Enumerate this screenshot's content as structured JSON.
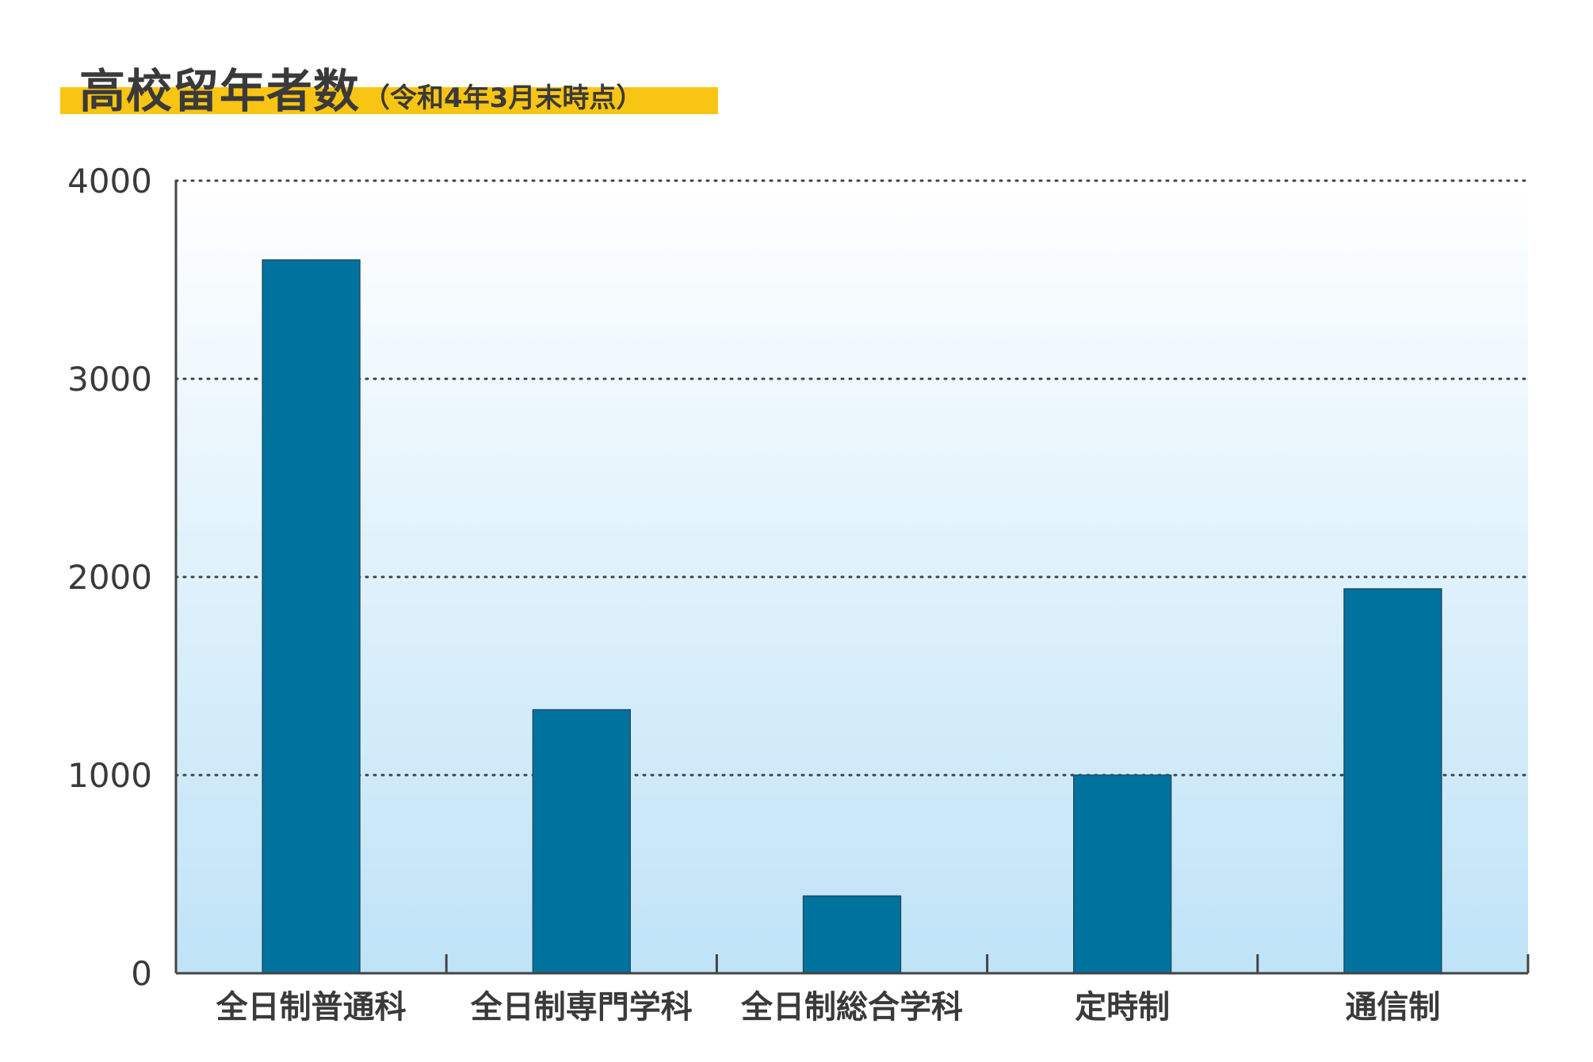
{
  "title": {
    "main": "高校留年者数",
    "sub": "（令和4年3月末時点）"
  },
  "colors": {
    "bar": "#00729e",
    "accent": "#f9c514",
    "bg_top": "#ffffff",
    "bg_bottom": "#bfe3f7",
    "axis": "#444444",
    "text": "#3a3a3a"
  },
  "chart_data": {
    "type": "bar",
    "categories": [
      "全日制普通科",
      "全日制専門学科",
      "全日制総合学科",
      "定時制",
      "通信制"
    ],
    "values": [
      3600,
      1330,
      390,
      1000,
      1940
    ],
    "title": "高校留年者数（令和4年3月末時点）",
    "xlabel": "",
    "ylabel": "",
    "ylim": [
      0,
      4000
    ],
    "yticks": [
      "0",
      "1000",
      "2000",
      "3000",
      "4000"
    ],
    "grid": "dotted horizontal",
    "legend": "none"
  }
}
